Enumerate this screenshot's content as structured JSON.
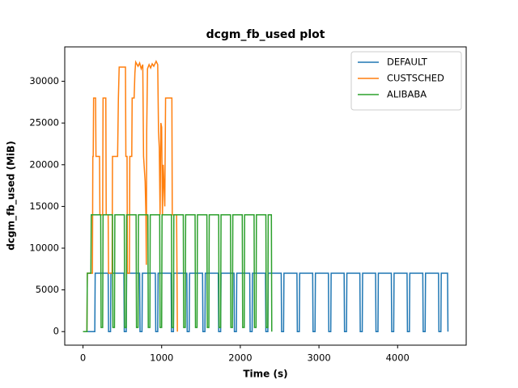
{
  "chart_data": {
    "type": "line",
    "title": "dcgm_fb_used plot",
    "xlabel": "Time (s)",
    "ylabel": "dcgm_fb_used (MiB)",
    "xlim": [
      -232,
      4872
    ],
    "ylim": [
      -1625,
      34125
    ],
    "xticks": [
      0,
      1000,
      2000,
      3000,
      4000
    ],
    "yticks": [
      0,
      5000,
      10000,
      15000,
      20000,
      25000,
      30000
    ],
    "grid": false,
    "legend": "upper right",
    "series": [
      {
        "name": "DEFAULT",
        "color": "#1f77b4",
        "x": [
          0,
          150,
          155,
          320,
          325,
          350,
          355,
          520,
          525,
          550,
          555,
          720,
          725,
          750,
          755,
          920,
          925,
          950,
          955,
          1120,
          1125,
          1150,
          1155,
          1320,
          1325,
          1350,
          1355,
          1520,
          1525,
          1550,
          1555,
          1720,
          1725,
          1750,
          1755,
          1920,
          1925,
          1950,
          1955,
          2120,
          2125,
          2150,
          2155,
          2320,
          2325,
          2350,
          2355,
          2520,
          2525,
          2550,
          2555,
          2720,
          2725,
          2750,
          2755,
          2920,
          2925,
          2950,
          2955,
          3120,
          3125,
          3150,
          3155,
          3320,
          3325,
          3350,
          3355,
          3520,
          3525,
          3550,
          3555,
          3720,
          3725,
          3750,
          3755,
          3920,
          3925,
          3950,
          3955,
          4120,
          4125,
          4150,
          4155,
          4320,
          4325,
          4350,
          4355,
          4520,
          4525,
          4550,
          4555,
          4635,
          4640
        ],
        "values": [
          0,
          0,
          7000,
          7000,
          0,
          0,
          7000,
          7000,
          0,
          0,
          7000,
          7000,
          0,
          0,
          7000,
          7000,
          0,
          0,
          7000,
          7000,
          0,
          0,
          7000,
          7000,
          0,
          0,
          7000,
          7000,
          0,
          0,
          7000,
          7000,
          0,
          0,
          7000,
          7000,
          0,
          0,
          7000,
          7000,
          0,
          0,
          7000,
          7000,
          0,
          0,
          7000,
          7000,
          0,
          0,
          7000,
          7000,
          0,
          0,
          7000,
          7000,
          0,
          0,
          7000,
          7000,
          0,
          0,
          7000,
          7000,
          0,
          0,
          7000,
          7000,
          0,
          0,
          7000,
          7000,
          0,
          0,
          7000,
          7000,
          0,
          0,
          7000,
          7000,
          0,
          0,
          7000,
          7000,
          0,
          0,
          7000,
          7000,
          0,
          0,
          7000,
          7000,
          0
        ]
      },
      {
        "name": "CUSTSCHED",
        "color": "#ff7f0e",
        "x": [
          0,
          50,
          55,
          120,
          125,
          130,
          135,
          160,
          165,
          210,
          215,
          250,
          255,
          290,
          295,
          320,
          325,
          370,
          375,
          440,
          450,
          460,
          540,
          545,
          560,
          565,
          590,
          595,
          620,
          625,
          650,
          660,
          670,
          700,
          720,
          740,
          760,
          770,
          790,
          800,
          805,
          810,
          820,
          840,
          860,
          880,
          900,
          930,
          950,
          960,
          970,
          980,
          990,
          1000,
          1010,
          1020,
          1040,
          1050,
          1130,
          1135,
          1190,
          1195,
          1200
        ],
        "values": [
          0,
          0,
          7000,
          7000,
          21000,
          21000,
          28000,
          28000,
          21000,
          21000,
          14000,
          14000,
          28000,
          28000,
          14000,
          14000,
          7000,
          7000,
          21000,
          21000,
          28000,
          31700,
          31700,
          21000,
          21000,
          7000,
          7000,
          21000,
          21000,
          28000,
          28000,
          31000,
          32300,
          31800,
          32200,
          31500,
          32000,
          21000,
          18000,
          14000,
          8000,
          24000,
          31500,
          32000,
          31600,
          32100,
          31800,
          32400,
          32000,
          24000,
          22000,
          14000,
          25000,
          24500,
          14000,
          20000,
          15000,
          28000,
          28000,
          14000,
          14000,
          7000,
          0
        ]
      },
      {
        "name": "ALIBABA",
        "color": "#2ca02c",
        "x": [
          0,
          50,
          55,
          100,
          105,
          225,
          230,
          250,
          255,
          375,
          380,
          400,
          405,
          525,
          530,
          550,
          555,
          675,
          680,
          700,
          705,
          825,
          830,
          850,
          855,
          975,
          980,
          1000,
          1005,
          1125,
          1130,
          1150,
          1155,
          1275,
          1280,
          1300,
          1305,
          1425,
          1430,
          1450,
          1455,
          1575,
          1580,
          1600,
          1605,
          1725,
          1730,
          1750,
          1755,
          1875,
          1880,
          1900,
          1905,
          2025,
          2030,
          2050,
          2055,
          2175,
          2180,
          2200,
          2205,
          2325,
          2330,
          2350,
          2355,
          2395,
          2400
        ],
        "values": [
          0,
          0,
          7000,
          7000,
          14000,
          14000,
          500,
          500,
          14000,
          14000,
          500,
          500,
          14000,
          14000,
          500,
          500,
          14000,
          14000,
          500,
          500,
          14000,
          14000,
          500,
          500,
          14000,
          14000,
          500,
          500,
          14000,
          14000,
          500,
          500,
          14000,
          14000,
          500,
          500,
          14000,
          14000,
          500,
          500,
          14000,
          14000,
          500,
          500,
          14000,
          14000,
          500,
          500,
          14000,
          14000,
          500,
          500,
          14000,
          14000,
          500,
          500,
          14000,
          14000,
          500,
          500,
          14000,
          14000,
          500,
          500,
          14000,
          14000,
          0
        ]
      }
    ]
  }
}
